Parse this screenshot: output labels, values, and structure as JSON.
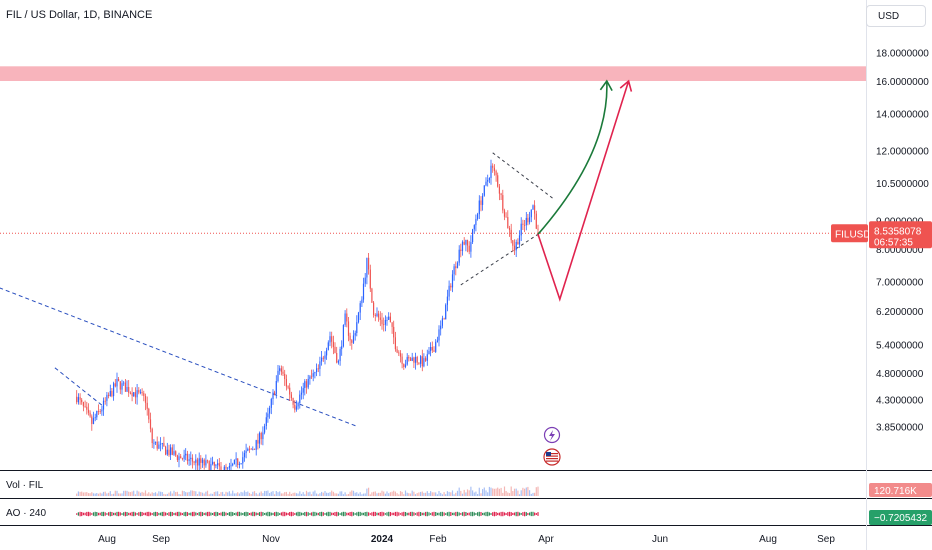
{
  "header": {
    "title": "FIL / US Dollar, 1D, BINANCE",
    "currency": "USD"
  },
  "colors": {
    "up": "#2962ff",
    "down": "#ef5350",
    "resistance_zone": "#f7a7b0",
    "price_line": "#ef5350",
    "bull_arrow": "#1b7a3a",
    "bear_arrow": "#e0234e",
    "channel": "#2a4fbf"
  },
  "chart_data": {
    "type": "candlestick",
    "symbol": "FILUSD",
    "scale": "log",
    "y_ticks": [
      "3.8500000",
      "4.3000000",
      "4.8000000",
      "5.4000000",
      "6.2000000",
      "7.0000000",
      "8.0000000",
      "9.0000000",
      "10.5000000",
      "12.0000000",
      "14.0000000",
      "16.0000000",
      "18.0000000"
    ],
    "x_ticks": [
      {
        "label": "Aug",
        "bold": false
      },
      {
        "label": "Sep",
        "bold": false
      },
      {
        "label": "Nov",
        "bold": false
      },
      {
        "label": "2024",
        "bold": true
      },
      {
        "label": "Feb",
        "bold": false
      },
      {
        "label": "Apr",
        "bold": false
      },
      {
        "label": "Jun",
        "bold": false
      },
      {
        "label": "Aug",
        "bold": false
      },
      {
        "label": "Sep",
        "bold": false
      }
    ],
    "last_price": {
      "symbol": "FILUSD",
      "price": "8.5358078",
      "countdown": "06:57:35"
    },
    "resistance_zone": [
      16.0,
      17.0
    ],
    "price_path": [
      [
        "2023-07-03",
        4.35
      ],
      [
        "2023-07-12",
        3.9
      ],
      [
        "2023-07-19",
        4.2
      ],
      [
        "2023-07-27",
        4.6
      ],
      [
        "2023-08-05",
        4.45
      ],
      [
        "2023-08-13",
        4.3
      ],
      [
        "2023-08-17",
        3.6
      ],
      [
        "2023-09-01",
        3.4
      ],
      [
        "2023-10-01",
        3.2
      ],
      [
        "2023-10-19",
        3.6
      ],
      [
        "2023-10-25",
        4.0
      ],
      [
        "2023-11-01",
        4.9
      ],
      [
        "2023-11-06",
        4.5
      ],
      [
        "2023-11-10",
        4.2
      ],
      [
        "2023-11-17",
        4.6
      ],
      [
        "2023-11-24",
        4.85
      ],
      [
        "2023-12-01",
        5.6
      ],
      [
        "2023-12-06",
        5.0
      ],
      [
        "2023-12-10",
        6.0
      ],
      [
        "2023-12-14",
        5.4
      ],
      [
        "2023-12-19",
        6.3
      ],
      [
        "2023-12-23",
        7.6
      ],
      [
        "2023-12-27",
        6.2
      ],
      [
        "2024-01-01",
        5.9
      ],
      [
        "2024-01-05",
        6.0
      ],
      [
        "2024-01-09",
        5.4
      ],
      [
        "2024-01-14",
        5.0
      ],
      [
        "2024-01-20",
        5.1
      ],
      [
        "2024-01-26",
        5.0
      ],
      [
        "2024-02-01",
        5.35
      ],
      [
        "2024-02-06",
        5.9
      ],
      [
        "2024-02-12",
        7.2
      ],
      [
        "2024-02-18",
        8.3
      ],
      [
        "2024-02-22",
        8.0
      ],
      [
        "2024-02-27",
        9.4
      ],
      [
        "2024-03-03",
        10.4
      ],
      [
        "2024-03-06",
        11.2
      ],
      [
        "2024-03-09",
        10.8
      ],
      [
        "2024-03-13",
        9.6
      ],
      [
        "2024-03-17",
        8.6
      ],
      [
        "2024-03-20",
        8.0
      ],
      [
        "2024-03-24",
        8.7
      ],
      [
        "2024-03-28",
        9.1
      ],
      [
        "2024-03-31",
        9.6
      ],
      [
        "2024-04-03",
        8.5358
      ]
    ],
    "bullish_path": [
      [
        "2024-04-03",
        8.5
      ],
      [
        "2024-04-25",
        11.0
      ],
      [
        "2024-05-14",
        16.0
      ]
    ],
    "bearish_path": [
      [
        "2024-04-03",
        8.5
      ],
      [
        "2024-04-16",
        6.5
      ],
      [
        "2024-05-27",
        16.0
      ]
    ],
    "trendline": [
      [
        "2023-03-01",
        8.4
      ],
      [
        "2023-12-17",
        3.85
      ]
    ],
    "trendline_2": [
      [
        "2023-06-20",
        4.9
      ],
      [
        "2023-07-18",
        4.2
      ]
    ],
    "channel_upper": [
      [
        "2024-03-07",
        11.9
      ],
      [
        "2024-04-13",
        9.8
      ]
    ],
    "channel_lower": [
      [
        "2024-02-17",
        6.9
      ],
      [
        "2024-04-03",
        8.5
      ]
    ],
    "volume_label": "Vol · FIL",
    "volume_value": "120.716K",
    "ao_label": "AO · 240",
    "ao_value": "−0.7205432"
  }
}
